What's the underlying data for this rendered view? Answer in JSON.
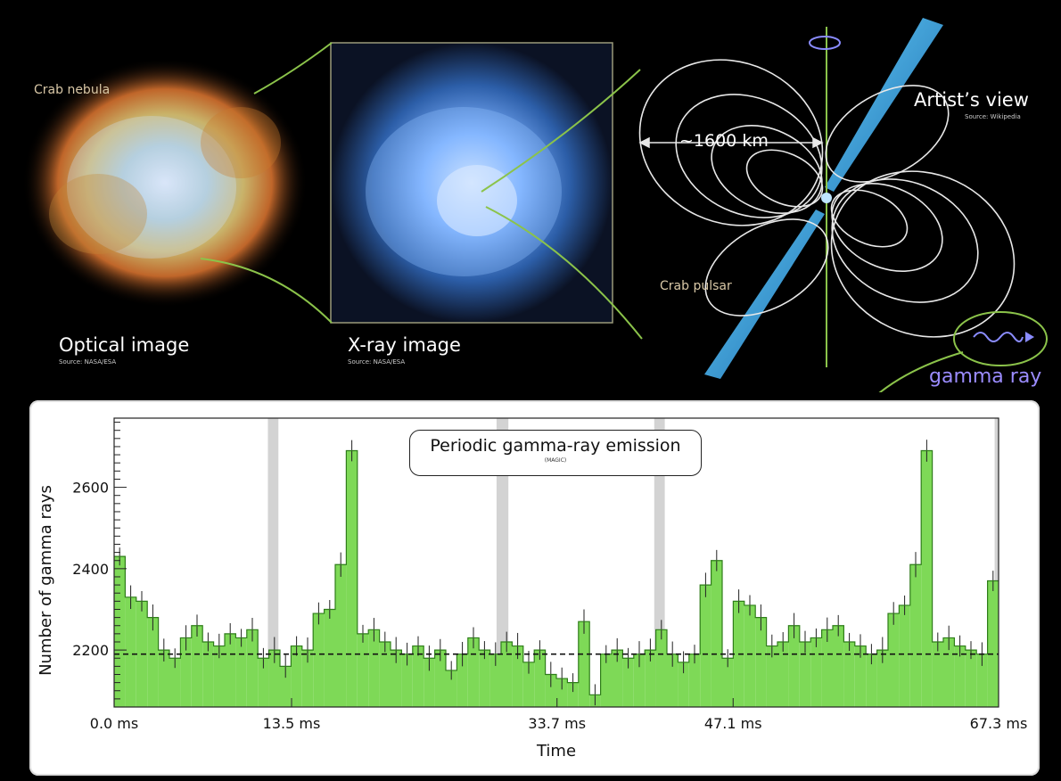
{
  "top": {
    "optical": {
      "label": "Optical image",
      "source": "Source: NASA/ESA"
    },
    "xray": {
      "label": "X-ray image",
      "source": "Source: NASA/ESA"
    },
    "artist": {
      "label": "Artist’s view",
      "source": "Source: Wikipedia"
    },
    "crab_nebula": "Crab nebula",
    "crab_pulsar": "Crab pulsar",
    "distance": "~1600 km",
    "gamma_ray": "gamma ray"
  },
  "colors": {
    "bar_fill": "#7ed957",
    "bar_edge": "#2f7d1a",
    "peak_band": "#d3d3d3",
    "connector": "#8bc34a",
    "gamma_label": "#9b8cff",
    "beam": "#5fc8f5"
  },
  "chart_data": {
    "type": "bar",
    "title": "Periodic gamma-ray emission",
    "subtitle": "(MAGIC)",
    "xlabel": "Time",
    "ylabel": "Number of gamma rays",
    "xlim": [
      0,
      67.3
    ],
    "ylim": [
      2060,
      2770
    ],
    "x_tick_values": [
      0,
      13.5,
      33.7,
      47.1,
      67.3
    ],
    "x_tick_labels": [
      "0.0 ms",
      "13.5 ms",
      "33.7 ms",
      "47.1 ms",
      "67.3 ms"
    ],
    "y_tick_values": [
      2200,
      2400,
      2600
    ],
    "y_tick_labels": [
      "2200",
      "2400",
      "2600"
    ],
    "baseline": 2190,
    "peak_bands": [
      [
        11.7,
        12.5
      ],
      [
        29.1,
        30.0
      ],
      [
        41.1,
        41.9
      ],
      [
        67.0,
        67.3
      ]
    ],
    "bins": 80,
    "values": [
      2430,
      2330,
      2320,
      2280,
      2200,
      2180,
      2230,
      2260,
      2220,
      2210,
      2240,
      2230,
      2250,
      2180,
      2200,
      2160,
      2210,
      2200,
      2290,
      2300,
      2410,
      2690,
      2240,
      2250,
      2220,
      2200,
      2190,
      2210,
      2180,
      2200,
      2150,
      2190,
      2230,
      2200,
      2190,
      2220,
      2210,
      2170,
      2200,
      2140,
      2130,
      2120,
      2270,
      2090,
      2190,
      2200,
      2180,
      2190,
      2200,
      2250,
      2190,
      2170,
      2190,
      2360,
      2420,
      2180,
      2320,
      2310,
      2280,
      2210,
      2220,
      2260,
      2220,
      2230,
      2250,
      2260,
      2220,
      2210,
      2190,
      2200,
      2290,
      2310,
      2410,
      2690,
      2220,
      2230,
      2210,
      2200,
      2190,
      2370
    ]
  }
}
